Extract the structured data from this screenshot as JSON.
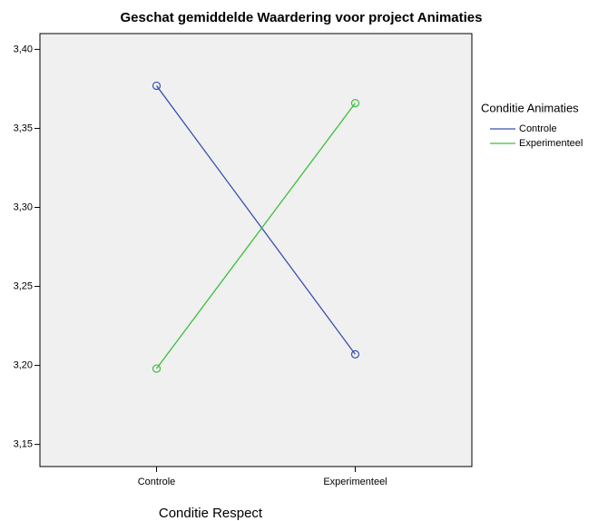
{
  "chart_data": {
    "type": "line",
    "title": "Geschat gemiddelde Waardering voor project Animaties",
    "x_label": "Conditie Respect",
    "legend_title": "Conditie Animaties",
    "categories": [
      "Controle",
      "Experimenteel"
    ],
    "series": [
      {
        "name": "Controle",
        "color": "#3a4fad",
        "values": [
          3.377,
          3.207
        ]
      },
      {
        "name": "Experimenteel",
        "color": "#3cbf3c",
        "values": [
          3.198,
          3.366
        ]
      }
    ],
    "ylim": [
      3.136,
      3.41
    ],
    "yticks": [
      {
        "value": 3.15,
        "label": "3,15"
      },
      {
        "value": 3.2,
        "label": "3,20"
      },
      {
        "value": 3.25,
        "label": "3,25"
      },
      {
        "value": 3.3,
        "label": "3,30"
      },
      {
        "value": 3.35,
        "label": "3,35"
      },
      {
        "value": 3.4,
        "label": "3,40"
      }
    ],
    "legend": "right"
  }
}
